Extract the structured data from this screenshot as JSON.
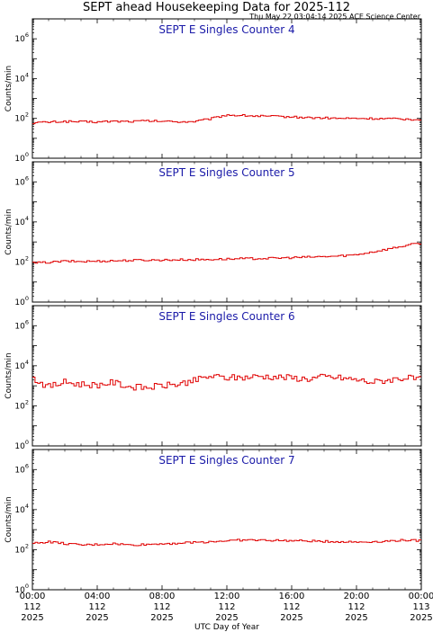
{
  "title": "SEPT ahead Housekeeping Data for 2025-112",
  "timestamp": "Thu May 22 03:04:14 2025 ACE Science Center",
  "xlabel": "UTC Day of Year",
  "colors": {
    "series": "#e00000",
    "panel_title": "#1a1aa8",
    "axes": "#000000"
  },
  "x_ticks": [
    {
      "hour": 0,
      "l1": "00:00",
      "l2": "112",
      "l3": "2025"
    },
    {
      "hour": 4,
      "l1": "04:00",
      "l2": "112",
      "l3": "2025"
    },
    {
      "hour": 8,
      "l1": "08:00",
      "l2": "112",
      "l3": "2025"
    },
    {
      "hour": 12,
      "l1": "12:00",
      "l2": "112",
      "l3": "2025"
    },
    {
      "hour": 16,
      "l1": "16:00",
      "l2": "112",
      "l3": "2025"
    },
    {
      "hour": 20,
      "l1": "20:00",
      "l2": "112",
      "l3": "2025"
    },
    {
      "hour": 24,
      "l1": "00:00",
      "l2": "113",
      "l3": "2025"
    }
  ],
  "chart_data": [
    {
      "type": "line",
      "title": "SEPT E Singles Counter 4",
      "ylabel": "Counts/min",
      "yscale": "log",
      "ylim": [
        1,
        10000000
      ],
      "yticks": [
        {
          "v": 1,
          "m": "10",
          "e": "0"
        },
        {
          "v": 100,
          "m": "10",
          "e": "2"
        },
        {
          "v": 10000,
          "m": "10",
          "e": "4"
        },
        {
          "v": 1000000,
          "m": "10",
          "e": "6"
        }
      ],
      "x_hours": [
        0,
        1,
        2,
        3,
        4,
        5,
        6,
        7,
        8,
        9,
        10,
        11,
        12,
        13,
        14,
        15,
        16,
        17,
        18,
        19,
        20,
        21,
        22,
        23,
        24
      ],
      "y": [
        60,
        65,
        70,
        68,
        66,
        72,
        70,
        75,
        72,
        68,
        70,
        95,
        150,
        140,
        130,
        125,
        120,
        110,
        105,
        100,
        100,
        98,
        95,
        92,
        90
      ]
    },
    {
      "type": "line",
      "title": "SEPT E Singles Counter 5",
      "ylabel": "Counts/min",
      "yscale": "log",
      "ylim": [
        1,
        10000000
      ],
      "yticks": [
        {
          "v": 1,
          "m": "10",
          "e": "0"
        },
        {
          "v": 100,
          "m": "10",
          "e": "2"
        },
        {
          "v": 10000,
          "m": "10",
          "e": "4"
        },
        {
          "v": 1000000,
          "m": "10",
          "e": "6"
        }
      ],
      "x_hours": [
        0,
        1,
        2,
        3,
        4,
        5,
        6,
        7,
        8,
        9,
        10,
        11,
        12,
        13,
        14,
        15,
        16,
        17,
        18,
        19,
        20,
        21,
        22,
        23,
        24
      ],
      "y": [
        90,
        95,
        110,
        105,
        110,
        115,
        120,
        125,
        125,
        130,
        130,
        135,
        140,
        145,
        150,
        155,
        165,
        175,
        185,
        200,
        230,
        320,
        450,
        650,
        900
      ]
    },
    {
      "type": "line",
      "title": "SEPT E Singles Counter 6",
      "ylabel": "Counts/min",
      "yscale": "log",
      "ylim": [
        1,
        10000000
      ],
      "yticks": [
        {
          "v": 1,
          "m": "10",
          "e": "0"
        },
        {
          "v": 100,
          "m": "10",
          "e": "2"
        },
        {
          "v": 10000,
          "m": "10",
          "e": "4"
        },
        {
          "v": 1000000,
          "m": "10",
          "e": "6"
        }
      ],
      "x_hours": [
        0,
        1,
        2,
        3,
        4,
        5,
        6,
        7,
        8,
        9,
        10,
        11,
        12,
        13,
        14,
        15,
        16,
        17,
        18,
        19,
        20,
        21,
        22,
        23,
        24
      ],
      "y": [
        2500,
        900,
        1500,
        1200,
        1100,
        1500,
        900,
        800,
        1000,
        1200,
        1800,
        3000,
        2500,
        2600,
        3000,
        2800,
        2500,
        2200,
        2800,
        2500,
        2000,
        1500,
        2000,
        2500,
        2000
      ]
    },
    {
      "type": "line",
      "title": "SEPT E Singles Counter 7",
      "ylabel": "Counts/min",
      "yscale": "log",
      "ylim": [
        1,
        10000000
      ],
      "yticks": [
        {
          "v": 1,
          "m": "10",
          "e": "0"
        },
        {
          "v": 100,
          "m": "10",
          "e": "2"
        },
        {
          "v": 10000,
          "m": "10",
          "e": "4"
        },
        {
          "v": 1000000,
          "m": "10",
          "e": "6"
        }
      ],
      "x_hours": [
        0,
        1,
        2,
        3,
        4,
        5,
        6,
        7,
        8,
        9,
        10,
        11,
        12,
        13,
        14,
        15,
        16,
        17,
        18,
        19,
        20,
        21,
        22,
        23,
        24
      ],
      "y": [
        200,
        250,
        200,
        170,
        180,
        200,
        170,
        180,
        200,
        210,
        230,
        250,
        280,
        300,
        300,
        290,
        280,
        270,
        260,
        250,
        240,
        250,
        270,
        300,
        280
      ]
    }
  ]
}
